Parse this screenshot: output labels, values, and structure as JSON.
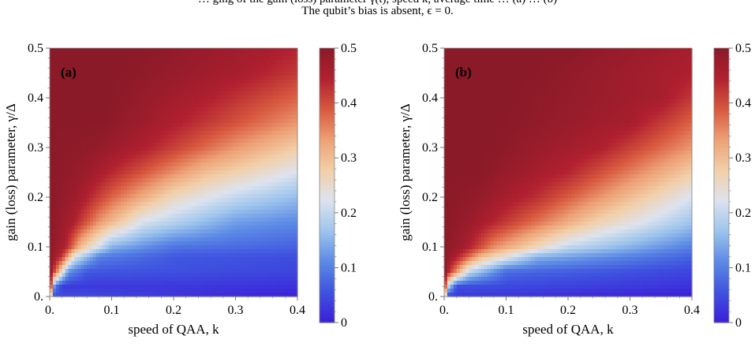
{
  "caption": {
    "line1": "… ging of the gain (loss) parameter γ(t), speed k, average time … (a) … (b)",
    "line2": "The qubit’s bias is absent, ϵ = 0."
  },
  "chart_data": [
    {
      "type": "heatmap",
      "panel_label": "(a)",
      "title": "",
      "xlabel": "speed of QAA, k",
      "ylabel": "gain (loss) parameter, γ/Δ",
      "xlim": [
        0,
        0.4
      ],
      "ylim": [
        0,
        0.5
      ],
      "x_ticks": [
        0,
        0.1,
        0.2,
        0.3,
        0.4
      ],
      "x_tick_labels": [
        "0.",
        "0.1",
        "0.2",
        "0.3",
        "0.4"
      ],
      "y_ticks": [
        0,
        0.1,
        0.2,
        0.3,
        0.4,
        0.5
      ],
      "y_tick_labels": [
        "0.",
        "0.1",
        "0.2",
        "0.3",
        "0.4",
        "0.5"
      ],
      "colorbar": {
        "range": [
          0,
          0.5
        ],
        "ticks": [
          0,
          0.1,
          0.2,
          0.3,
          0.4,
          0.5
        ],
        "tick_labels": [
          "0",
          "0.1",
          "0.2",
          "0.3",
          "0.4",
          "0.5"
        ],
        "colormap": "coolwarm",
        "colors": [
          "#3b1fd8",
          "#3f53e0",
          "#5c8ae6",
          "#9dc4ec",
          "#dde3ee",
          "#f2cfa8",
          "#eda075",
          "#d7583e",
          "#b12030",
          "#8b1a28"
        ]
      },
      "rows": {
        "y": [
          0.0,
          0.02,
          0.05,
          0.08,
          0.1,
          0.15,
          0.2,
          0.25,
          0.3,
          0.35,
          0.4,
          0.45,
          0.5
        ],
        "description_pairs": "each row: [k, value] points along the row",
        "values": [
          [
            [
              0,
              0.5
            ],
            [
              0.004,
              0.05
            ],
            [
              0.4,
              0.0
            ]
          ],
          [
            [
              0,
              0.5
            ],
            [
              0.008,
              0.1
            ],
            [
              0.02,
              0.03
            ],
            [
              0.4,
              0.02
            ]
          ],
          [
            [
              0,
              0.5
            ],
            [
              0.012,
              0.35
            ],
            [
              0.03,
              0.12
            ],
            [
              0.06,
              0.06
            ],
            [
              0.4,
              0.04
            ]
          ],
          [
            [
              0,
              0.5
            ],
            [
              0.02,
              0.42
            ],
            [
              0.04,
              0.22
            ],
            [
              0.08,
              0.1
            ],
            [
              0.2,
              0.06
            ],
            [
              0.4,
              0.05
            ]
          ],
          [
            [
              0,
              0.5
            ],
            [
              0.025,
              0.45
            ],
            [
              0.05,
              0.3
            ],
            [
              0.1,
              0.15
            ],
            [
              0.2,
              0.09
            ],
            [
              0.4,
              0.07
            ]
          ],
          [
            [
              0,
              0.5
            ],
            [
              0.035,
              0.46
            ],
            [
              0.08,
              0.34
            ],
            [
              0.15,
              0.22
            ],
            [
              0.3,
              0.13
            ],
            [
              0.4,
              0.11
            ]
          ],
          [
            [
              0,
              0.5
            ],
            [
              0.045,
              0.47
            ],
            [
              0.1,
              0.38
            ],
            [
              0.2,
              0.26
            ],
            [
              0.3,
              0.2
            ],
            [
              0.4,
              0.16
            ]
          ],
          [
            [
              0,
              0.5
            ],
            [
              0.055,
              0.48
            ],
            [
              0.12,
              0.42
            ],
            [
              0.25,
              0.3
            ],
            [
              0.4,
              0.22
            ]
          ],
          [
            [
              0,
              0.5
            ],
            [
              0.07,
              0.49
            ],
            [
              0.15,
              0.45
            ],
            [
              0.3,
              0.34
            ],
            [
              0.4,
              0.28
            ]
          ],
          [
            [
              0,
              0.5
            ],
            [
              0.09,
              0.5
            ],
            [
              0.2,
              0.45
            ],
            [
              0.4,
              0.34
            ]
          ],
          [
            [
              0,
              0.5
            ],
            [
              0.1,
              0.5
            ],
            [
              0.25,
              0.45
            ],
            [
              0.4,
              0.38
            ]
          ],
          [
            [
              0,
              0.5
            ],
            [
              0.12,
              0.5
            ],
            [
              0.3,
              0.46
            ],
            [
              0.4,
              0.42
            ]
          ],
          [
            [
              0,
              0.5
            ],
            [
              0.15,
              0.5
            ],
            [
              0.35,
              0.46
            ],
            [
              0.4,
              0.44
            ]
          ]
        ]
      }
    },
    {
      "type": "heatmap",
      "panel_label": "(b)",
      "title": "",
      "xlabel": "speed of QAA, k",
      "ylabel": "gain (loss) parameter, γ/Δ",
      "xlim": [
        0,
        0.4
      ],
      "ylim": [
        0,
        0.5
      ],
      "x_ticks": [
        0,
        0.1,
        0.2,
        0.3,
        0.4
      ],
      "x_tick_labels": [
        "0.",
        "0.1",
        "0.2",
        "0.3",
        "0.4"
      ],
      "y_ticks": [
        0,
        0.1,
        0.2,
        0.3,
        0.4,
        0.5
      ],
      "y_tick_labels": [
        "0.",
        "0.1",
        "0.2",
        "0.3",
        "0.4",
        "0.5"
      ],
      "colorbar": {
        "range": [
          0,
          0.5
        ],
        "ticks": [
          0,
          0.1,
          0.2,
          0.3,
          0.4,
          0.5
        ],
        "tick_labels": [
          "0",
          "0.1",
          "0.2",
          "0.3",
          "0.4",
          "0.5"
        ],
        "colormap": "coolwarm",
        "colors": [
          "#3b1fd8",
          "#3f53e0",
          "#5c8ae6",
          "#9dc4ec",
          "#dde3ee",
          "#f2cfa8",
          "#eda075",
          "#d7583e",
          "#b12030",
          "#8b1a28"
        ]
      },
      "rows": {
        "y": [
          0.0,
          0.02,
          0.05,
          0.08,
          0.1,
          0.15,
          0.2,
          0.25,
          0.3,
          0.35,
          0.4,
          0.45,
          0.5
        ],
        "values": [
          [
            [
              0,
              0.5
            ],
            [
              0.004,
              0.03
            ],
            [
              0.4,
              0.0
            ]
          ],
          [
            [
              0,
              0.5
            ],
            [
              0.006,
              0.2
            ],
            [
              0.02,
              0.05
            ],
            [
              0.4,
              0.02
            ]
          ],
          [
            [
              0,
              0.5
            ],
            [
              0.012,
              0.4
            ],
            [
              0.04,
              0.2
            ],
            [
              0.1,
              0.08
            ],
            [
              0.4,
              0.04
            ]
          ],
          [
            [
              0,
              0.5
            ],
            [
              0.02,
              0.45
            ],
            [
              0.06,
              0.3
            ],
            [
              0.15,
              0.15
            ],
            [
              0.4,
              0.07
            ]
          ],
          [
            [
              0,
              0.5
            ],
            [
              0.03,
              0.47
            ],
            [
              0.08,
              0.35
            ],
            [
              0.2,
              0.2
            ],
            [
              0.4,
              0.1
            ]
          ],
          [
            [
              0,
              0.5
            ],
            [
              0.04,
              0.48
            ],
            [
              0.12,
              0.4
            ],
            [
              0.25,
              0.27
            ],
            [
              0.4,
              0.17
            ]
          ],
          [
            [
              0,
              0.5
            ],
            [
              0.05,
              0.49
            ],
            [
              0.15,
              0.43
            ],
            [
              0.3,
              0.3
            ],
            [
              0.4,
              0.22
            ]
          ],
          [
            [
              0,
              0.5
            ],
            [
              0.06,
              0.5
            ],
            [
              0.2,
              0.44
            ],
            [
              0.4,
              0.28
            ]
          ],
          [
            [
              0,
              0.5
            ],
            [
              0.08,
              0.5
            ],
            [
              0.25,
              0.45
            ],
            [
              0.4,
              0.34
            ]
          ],
          [
            [
              0,
              0.5
            ],
            [
              0.1,
              0.5
            ],
            [
              0.3,
              0.46
            ],
            [
              0.4,
              0.38
            ]
          ],
          [
            [
              0,
              0.5
            ],
            [
              0.12,
              0.5
            ],
            [
              0.35,
              0.46
            ],
            [
              0.4,
              0.42
            ]
          ],
          [
            [
              0,
              0.5
            ],
            [
              0.15,
              0.5
            ],
            [
              0.4,
              0.45
            ]
          ],
          [
            [
              0,
              0.5
            ],
            [
              0.2,
              0.5
            ],
            [
              0.4,
              0.46
            ]
          ]
        ]
      }
    }
  ]
}
